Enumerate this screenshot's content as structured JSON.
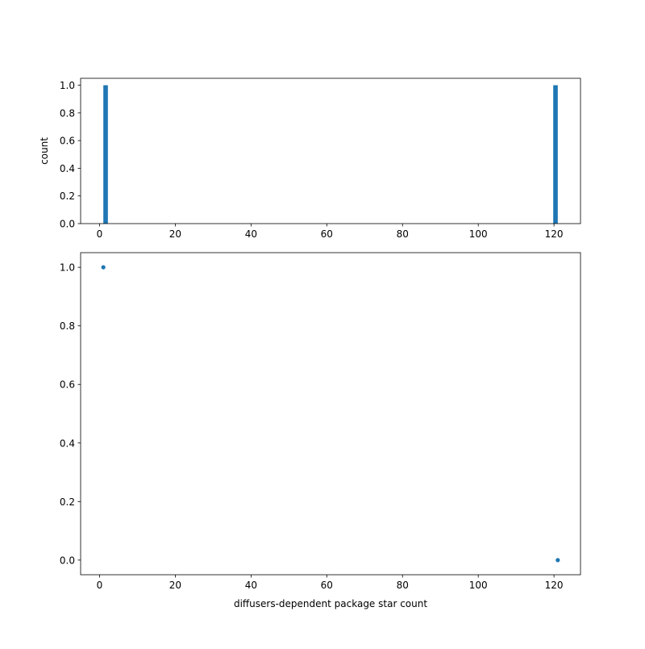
{
  "chart_data": [
    {
      "type": "bar",
      "subtype": "histogram",
      "title": "",
      "xlabel": "",
      "ylabel": "count",
      "xlim": [
        -5,
        127
      ],
      "ylim": [
        0,
        1.05
      ],
      "xticks": [
        0,
        20,
        40,
        60,
        80,
        100,
        120
      ],
      "xtick_labels": [
        "0",
        "20",
        "40",
        "60",
        "80",
        "100",
        "120"
      ],
      "yticks": [
        0,
        0.2,
        0.4,
        0.6,
        0.8,
        1.0
      ],
      "ytick_labels": [
        "0.0",
        "0.2",
        "0.4",
        "0.6",
        "0.8",
        "1.0"
      ],
      "bars": [
        {
          "x_start": 1,
          "x_end": 2.2,
          "value": 1
        },
        {
          "x_start": 119.8,
          "x_end": 121,
          "value": 1
        }
      ],
      "color": "#1f77b4",
      "grid": false
    },
    {
      "type": "scatter",
      "title": "",
      "xlabel": "diffusers-dependent package star count",
      "ylabel": "",
      "xlim": [
        -5,
        127
      ],
      "ylim": [
        -0.05,
        1.05
      ],
      "xticks": [
        0,
        20,
        40,
        60,
        80,
        100,
        120
      ],
      "xtick_labels": [
        "0",
        "20",
        "40",
        "60",
        "80",
        "100",
        "120"
      ],
      "yticks": [
        0,
        0.2,
        0.4,
        0.6,
        0.8,
        1.0
      ],
      "ytick_labels": [
        "0.0",
        "0.2",
        "0.4",
        "0.6",
        "0.8",
        "1.0"
      ],
      "points": [
        {
          "x": 1,
          "y": 1.0
        },
        {
          "x": 121,
          "y": 0.0
        }
      ],
      "color": "#1f77b4",
      "grid": false
    }
  ]
}
